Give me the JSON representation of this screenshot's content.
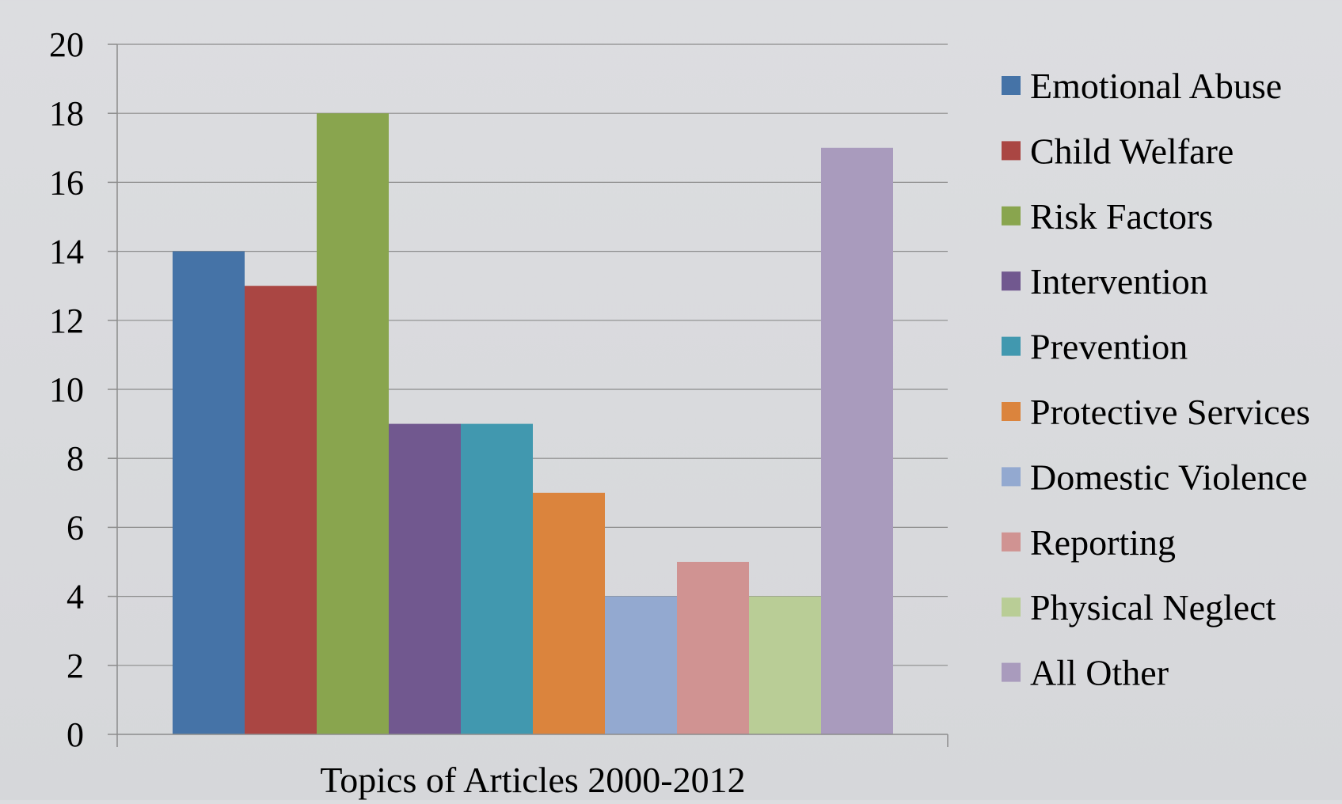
{
  "chart_data": {
    "type": "bar",
    "xlabel": "Topics of Articles 2000-2012",
    "ylabel": "",
    "ylim": [
      0,
      20
    ],
    "yticks": [
      0,
      2,
      4,
      6,
      8,
      10,
      12,
      14,
      16,
      18,
      20
    ],
    "grid": true,
    "legend_position": "right",
    "categories": [
      "Topics of Articles 2000-2012"
    ],
    "series": [
      {
        "name": "Emotional Abuse",
        "values": [
          14
        ],
        "color": "#4573a7"
      },
      {
        "name": "Child Welfare",
        "values": [
          13
        ],
        "color": "#aa4643"
      },
      {
        "name": "Risk Factors",
        "values": [
          18
        ],
        "color": "#89a54e"
      },
      {
        "name": "Intervention",
        "values": [
          9
        ],
        "color": "#71588f"
      },
      {
        "name": "Prevention",
        "values": [
          9
        ],
        "color": "#4198af"
      },
      {
        "name": "Protective Services",
        "values": [
          7
        ],
        "color": "#db843d"
      },
      {
        "name": "Domestic Violence",
        "values": [
          4
        ],
        "color": "#93a9d0"
      },
      {
        "name": "Reporting",
        "values": [
          5
        ],
        "color": "#d09392"
      },
      {
        "name": "Physical Neglect",
        "values": [
          4
        ],
        "color": "#b9cd96"
      },
      {
        "name": "All Other",
        "values": [
          17
        ],
        "color": "#a99bbd"
      }
    ]
  }
}
